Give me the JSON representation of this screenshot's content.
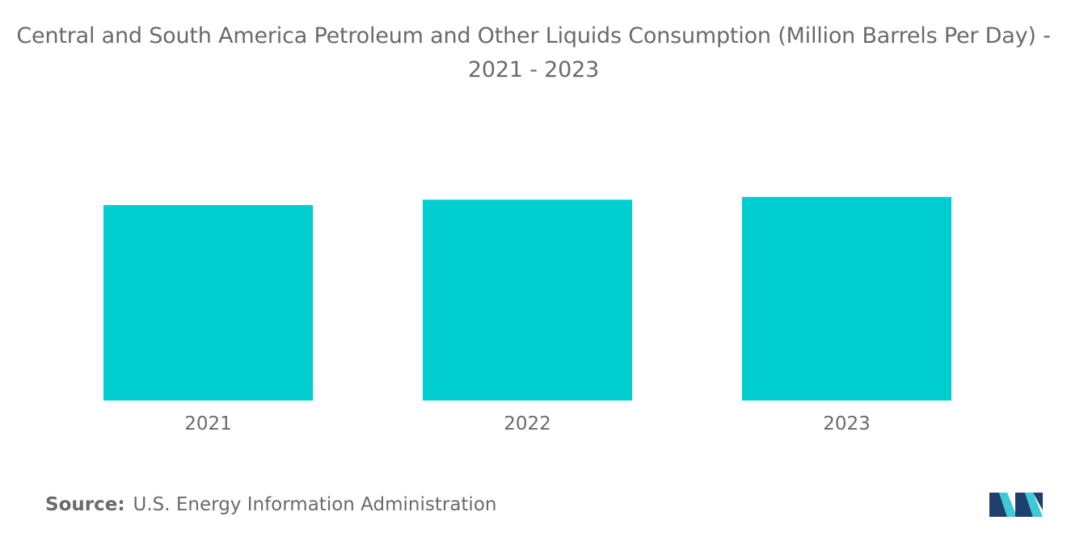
{
  "title": "Central and South America Petroleum and Other Liquids Consumption (Million Barrels Per Day) - 2021 - 2023",
  "source": {
    "label": "Source:",
    "text": "U.S. Energy Information Administration"
  },
  "logo": {
    "name": "mordor-intelligence-logo",
    "colors": [
      "#1f3f6e",
      "#3ec9d6"
    ]
  },
  "colors": {
    "bar": "#00ced1",
    "text": "#6a6a6a"
  },
  "chart_data": {
    "type": "bar",
    "title": "Central and South America Petroleum and Other Liquids Consumption (Million Barrels Per Day) - 2021 - 2023",
    "categories": [
      "2021",
      "2022",
      "2023"
    ],
    "values": [
      6.5,
      6.68,
      6.77
    ],
    "xlabel": "",
    "ylabel": "",
    "ylim": [
      0,
      7
    ],
    "grid": false,
    "legend": "none"
  }
}
